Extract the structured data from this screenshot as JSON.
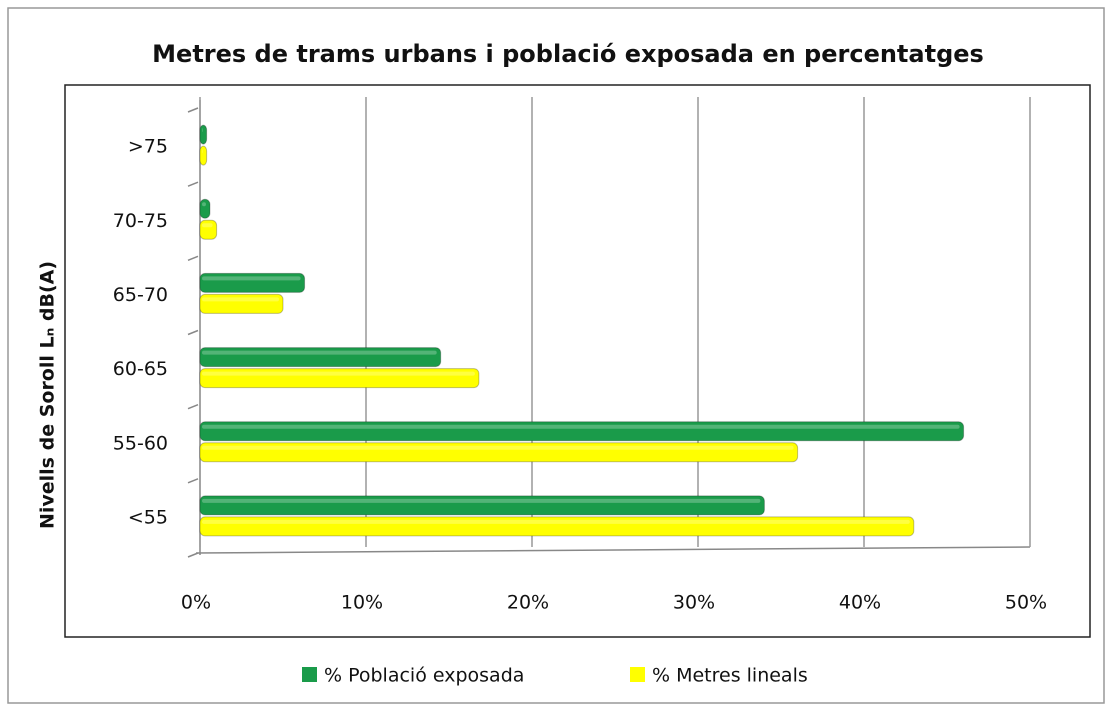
{
  "chart_data": {
    "type": "bar",
    "orientation": "horizontal",
    "title": "Metres de trams urbans i població exposada en percentatges",
    "y_label": "Nivells de Soroll Lₙ dB(A)",
    "categories": [
      "<55",
      "55-60",
      "60-65",
      "65-70",
      "70-75",
      ">75"
    ],
    "series": [
      {
        "name": "% Població exposada",
        "color": "#1a9b4a",
        "values": [
          34,
          46,
          14.5,
          6.3,
          0.6,
          0.4
        ]
      },
      {
        "name": "% Metres lineals",
        "color": "#ffff00",
        "values": [
          43,
          36,
          16.8,
          5,
          1,
          0.4
        ]
      }
    ],
    "xlim": [
      0,
      50
    ],
    "xticks": [
      {
        "value": 0,
        "label": "0%"
      },
      {
        "value": 10,
        "label": "10%"
      },
      {
        "value": 20,
        "label": "20%"
      },
      {
        "value": 30,
        "label": "30%"
      },
      {
        "value": 40,
        "label": "40%"
      },
      {
        "value": 50,
        "label": "50%"
      }
    ],
    "grid": true,
    "legend": "bottom"
  }
}
